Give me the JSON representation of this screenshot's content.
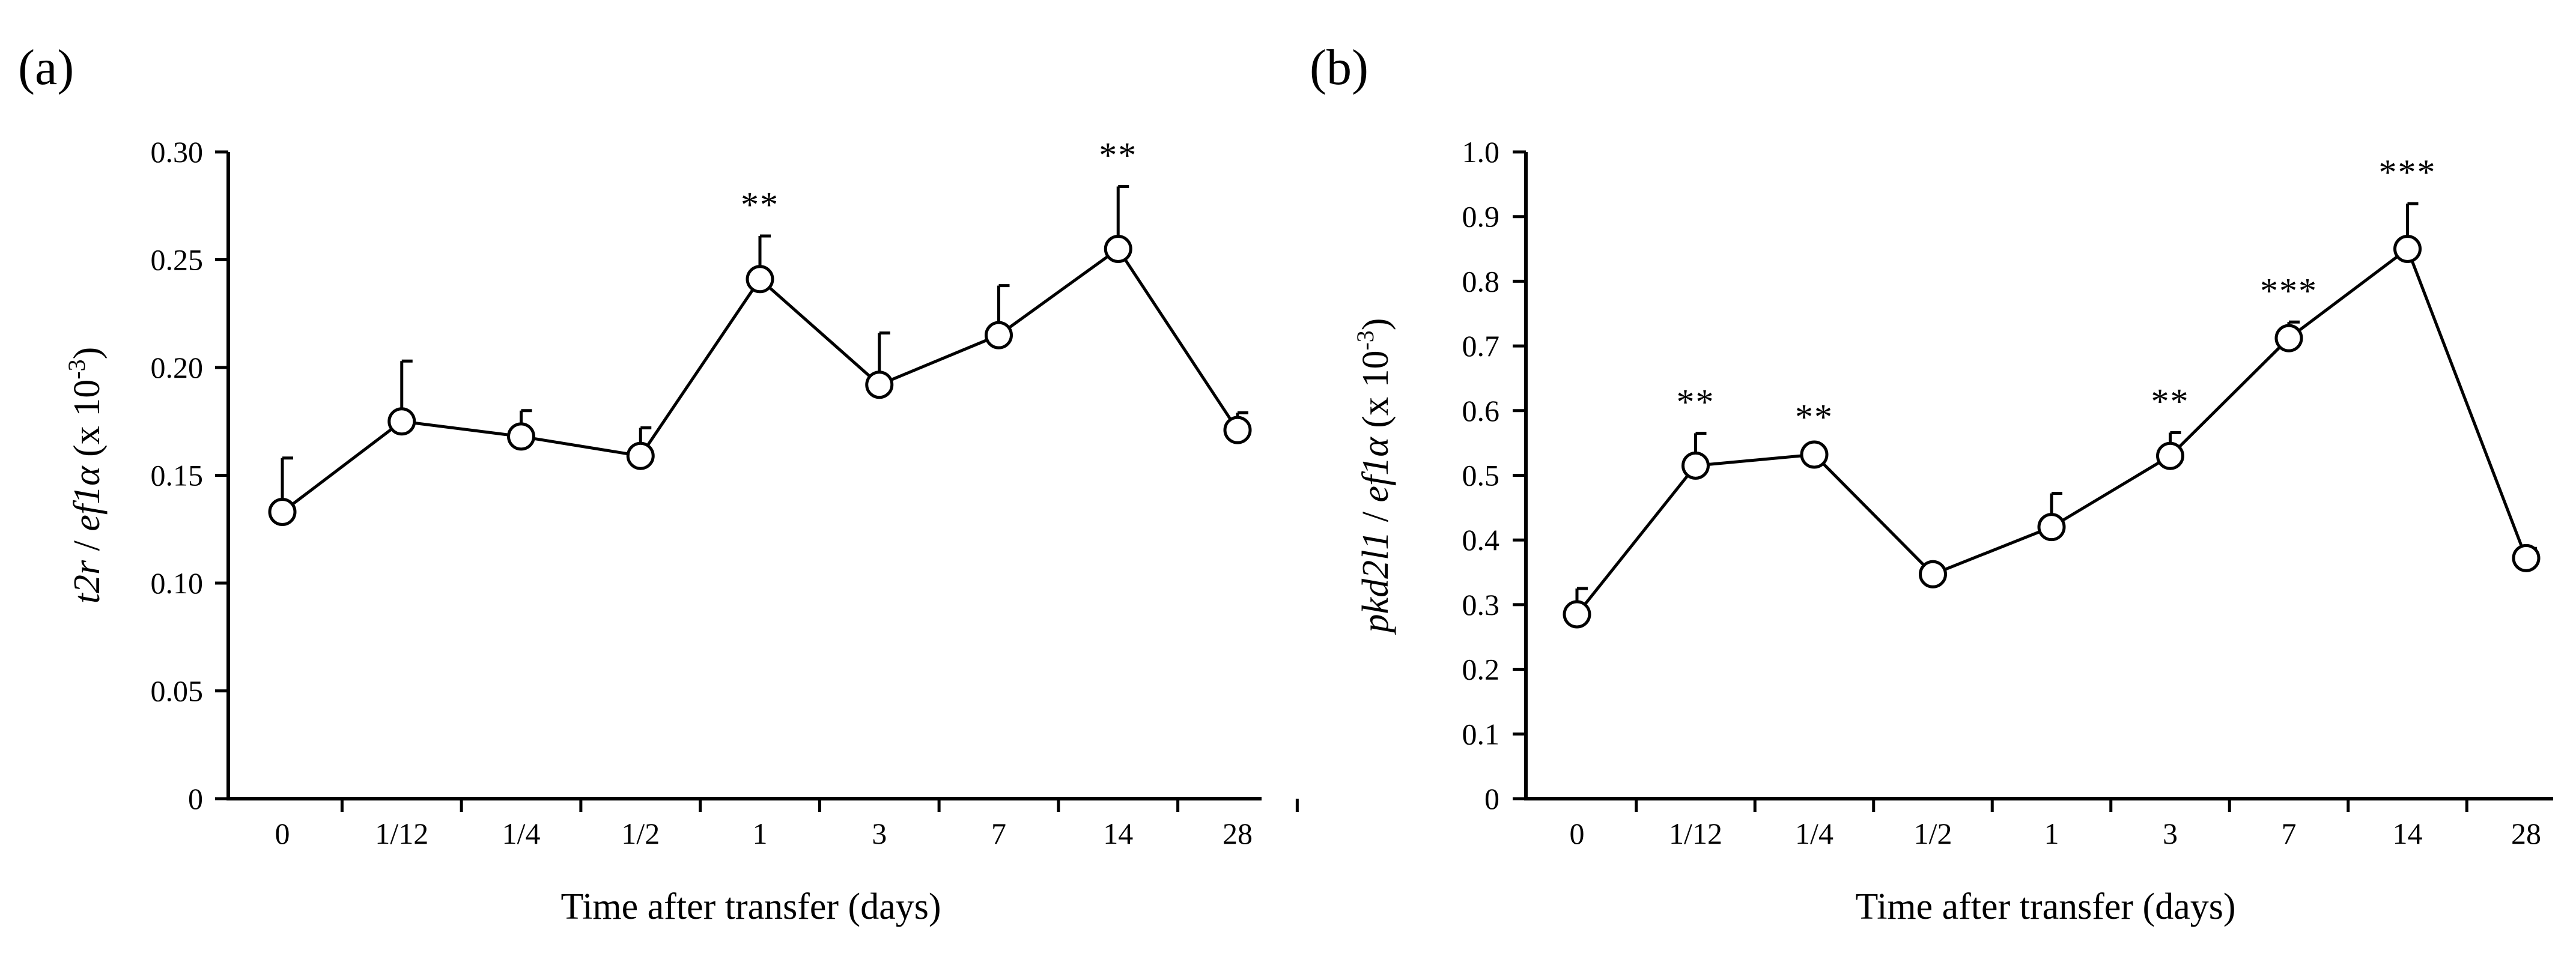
{
  "chart_data": [
    {
      "id": "a",
      "panel_label": "(a)",
      "type": "line",
      "categories": [
        "0",
        "1/12",
        "1/4",
        "1/2",
        "1",
        "3",
        "7",
        "14",
        "28"
      ],
      "values": [
        0.133,
        0.175,
        0.168,
        0.159,
        0.241,
        0.192,
        0.215,
        0.255,
        0.171
      ],
      "error_upper": [
        0.025,
        0.028,
        0.012,
        0.013,
        0.02,
        0.024,
        0.023,
        0.029,
        0.008
      ],
      "significance": [
        "",
        "",
        "",
        "",
        "**",
        "",
        "",
        "**",
        ""
      ],
      "ylim": [
        0,
        0.3
      ],
      "yticks": [
        0,
        0.05,
        0.1,
        0.15,
        0.2,
        0.25,
        0.3
      ],
      "ytick_labels": [
        "0",
        "0.05",
        "0.10",
        "0.15",
        "0.20",
        "0.25",
        "0.30"
      ],
      "xlabel": "Time after transfer (days)",
      "ylabel": {
        "gene": "t2r",
        "sep": " / ",
        "ref": "ef1α",
        "unit_base": " (x 10",
        "unit_exp": "-3",
        "unit_end": ")"
      }
    },
    {
      "id": "b",
      "panel_label": "(b)",
      "type": "line",
      "categories": [
        "0",
        "1/12",
        "1/4",
        "1/2",
        "1",
        "3",
        "7",
        "14",
        "28"
      ],
      "values": [
        0.285,
        0.515,
        0.532,
        0.347,
        0.42,
        0.53,
        0.712,
        0.85,
        0.372
      ],
      "error_upper": [
        0.04,
        0.05,
        0.01,
        0.005,
        0.052,
        0.036,
        0.025,
        0.07,
        0.015
      ],
      "significance": [
        "",
        "**",
        "**",
        "",
        "",
        "**",
        "***",
        "***",
        ""
      ],
      "ylim": [
        0,
        1.0
      ],
      "yticks": [
        0,
        0.1,
        0.2,
        0.3,
        0.4,
        0.5,
        0.6,
        0.7,
        0.8,
        0.9,
        1.0
      ],
      "ytick_labels": [
        "0",
        "0.1",
        "0.2",
        "0.3",
        "0.4",
        "0.5",
        "0.6",
        "0.7",
        "0.8",
        "0.9",
        "1.0"
      ],
      "xlabel": "Time after transfer (days)",
      "ylabel": {
        "gene": "pkd2l1",
        "sep": " / ",
        "ref": "ef1α",
        "unit_base": " (x 10",
        "unit_exp": "-3",
        "unit_end": ")"
      }
    }
  ]
}
